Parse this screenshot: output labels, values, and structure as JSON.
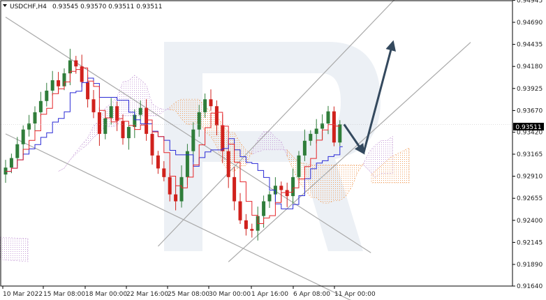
{
  "header": {
    "symbol": "USDCHF,H4",
    "ohlc": "0.93545 0.93570 0.93511 0.93511"
  },
  "colors": {
    "up": "#2f7d3a",
    "down": "#d0211c",
    "tenkan": "#e5262a",
    "kijun": "#2a2ad6",
    "kumo_orange": "#f0a060",
    "kumo_violet": "#c8a0d8",
    "channel": "#a9a9a9",
    "arrow": "#34495e",
    "watermark": "#dde3ec"
  },
  "chart_data": {
    "type": "candlestick",
    "symbol": "USDCHF",
    "timeframe": "H4",
    "current_price": "0.93511",
    "ylim": [
      0.9164,
      0.9494
    ],
    "y_ticks": [
      "0.94945",
      "0.94690",
      "0.94435",
      "0.94180",
      "0.93925",
      "0.93670",
      "0.93420",
      "0.93165",
      "0.92910",
      "0.92655",
      "0.92400",
      "0.92145",
      "0.91890",
      "0.91640"
    ],
    "x_ticks": [
      "10 Mar 2022",
      "15 Mar 08:00",
      "18 Mar 00:00",
      "22 Mar 16:00",
      "25 Mar 08:00",
      "30 Mar 00:00",
      "1 Apr 16:00",
      "6 Apr 08:00",
      "11 Apr 00:00"
    ],
    "close": [
      0.9301,
      0.9312,
      0.9328,
      0.9345,
      0.9352,
      0.9365,
      0.9378,
      0.939,
      0.9402,
      0.9395,
      0.941,
      0.9425,
      0.9418,
      0.94,
      0.938,
      0.9365,
      0.934,
      0.9358,
      0.9372,
      0.9355,
      0.9335,
      0.9348,
      0.9362,
      0.937,
      0.934,
      0.9315,
      0.93,
      0.929,
      0.927,
      0.9262,
      0.929,
      0.932,
      0.9345,
      0.9365,
      0.938,
      0.9372,
      0.935,
      0.932,
      0.929,
      0.9262,
      0.924,
      0.923,
      0.9228,
      0.9245,
      0.9262,
      0.927,
      0.928,
      0.9275,
      0.9268,
      0.929,
      0.9315,
      0.9332,
      0.934,
      0.9346,
      0.9352,
      0.9366,
      0.933,
      0.9351
    ],
    "annotations": {
      "channel_lines": [
        {
          "from": [
            "t0",
            0.9475
          ],
          "to": [
            "t48",
            0.9265
          ]
        },
        {
          "from": [
            "t0",
            0.934
          ],
          "to": [
            "t48",
            0.9183
          ]
        },
        {
          "from": [
            "t26",
            0.921
          ],
          "to": [
            "t52",
            0.9394
          ]
        },
        {
          "from": [
            "t38",
            0.9192
          ],
          "to": [
            "t65",
            0.9358
          ]
        }
      ],
      "forecast_arrow": [
        [
          0.9348,
          0.9318
        ],
        [
          0.9318,
          0.9446
        ]
      ]
    }
  }
}
